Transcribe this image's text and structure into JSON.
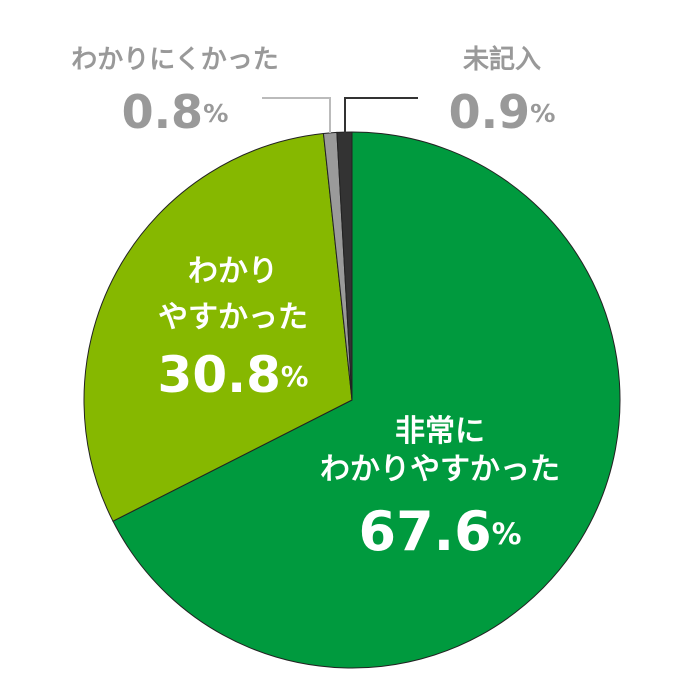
{
  "chart_data": {
    "type": "pie",
    "categories": [
      "非常に\nわかりやすかった",
      "わかり\nやすかった",
      "わかりにくかった",
      "未記入"
    ],
    "values": [
      67.6,
      30.8,
      0.8,
      0.9
    ],
    "value_labels": [
      "67.6%",
      "30.8%",
      "0.8%",
      "0.9%"
    ],
    "colors": [
      "#009a3e",
      "#86b800",
      "#9a9a9a",
      "#333333"
    ]
  }
}
